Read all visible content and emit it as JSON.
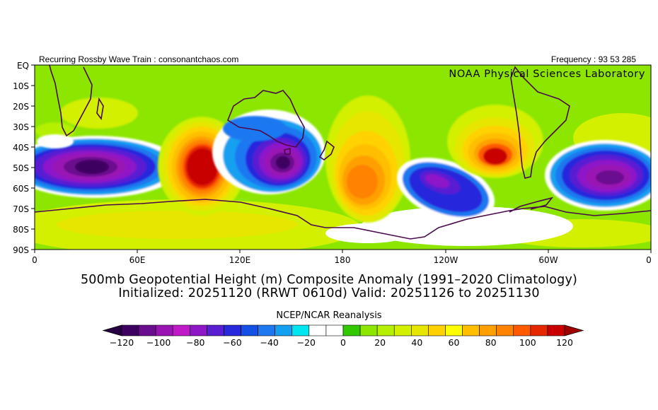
{
  "header": {
    "left_text": "Recurring Rossby Wave Train : consonantchaos.com",
    "right_text": "Frequency : 93 53 285",
    "lab_text": "NOAA Physical Sciences Laboratory"
  },
  "map": {
    "lat_labels": [
      "EQ",
      "10S",
      "20S",
      "30S",
      "40S",
      "50S",
      "60S",
      "70S",
      "80S",
      "90S"
    ],
    "lon_labels": [
      "0",
      "60E",
      "120E",
      "180",
      "120W",
      "60W",
      "0"
    ]
  },
  "titles": {
    "line1": "500mb Geopotential Height (m) Composite Anomaly (1991–2020 Climatology)",
    "line2": "Initialized: 20251120 (RRWT 0610d) Valid: 20251126 to 20251130",
    "source": "NCEP/NCAR Reanalysis"
  },
  "colorbar": {
    "labels": [
      "−120",
      "−100",
      "−80",
      "−60",
      "−40",
      "−20",
      "0",
      "20",
      "40",
      "60",
      "80",
      "100",
      "120"
    ],
    "colors": [
      "#3c0060",
      "#6a0e8e",
      "#9a14b4",
      "#c01ac8",
      "#8e18c8",
      "#5a1ed2",
      "#2828dc",
      "#1450e6",
      "#1e78f0",
      "#14a0f0",
      "#00e6f0",
      "#ffffff",
      "#ffffff",
      "#32c800",
      "#8ce600",
      "#b4f000",
      "#d2f000",
      "#e6e600",
      "#ffd200",
      "#ffff00",
      "#ffbe00",
      "#ffa000",
      "#ff8200",
      "#ff5a00",
      "#e62800",
      "#c80000"
    ],
    "left_arrow_color": "#280040",
    "right_arrow_color": "#a00000"
  },
  "chart_data": {
    "type": "heatmap",
    "variable": "500mb Geopotential Height (m) Composite Anomaly",
    "x_range": [
      0,
      360
    ],
    "y_range": [
      0,
      -90
    ],
    "x_ticks": [
      "0",
      "60E",
      "120E",
      "180",
      "120W",
      "60W",
      "0"
    ],
    "y_ticks": [
      "EQ",
      "10S",
      "20S",
      "30S",
      "40S",
      "50S",
      "60S",
      "70S",
      "80S",
      "90S"
    ],
    "color_scale": [
      -120,
      120
    ],
    "color_step": 10,
    "anomaly_centers": [
      {
        "lon": 40,
        "lat": -50,
        "value": -115
      },
      {
        "lon": 97,
        "lat": -50,
        "value": 110
      },
      {
        "lon": 145,
        "lat": -48,
        "value": -95
      },
      {
        "lon": 190,
        "lat": -54,
        "value": 80
      },
      {
        "lon": 245,
        "lat": -58,
        "value": -65
      },
      {
        "lon": 273,
        "lat": -44,
        "value": 100
      },
      {
        "lon": 330,
        "lat": -53,
        "value": -90
      },
      {
        "lon": 70,
        "lat": -80,
        "value": 45
      },
      {
        "lon": 155,
        "lat": -25,
        "value": -40
      },
      {
        "lon": 200,
        "lat": -30,
        "value": 40
      }
    ]
  }
}
